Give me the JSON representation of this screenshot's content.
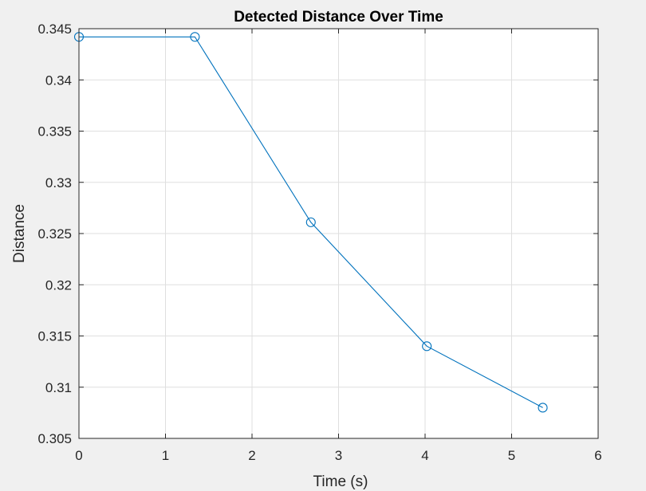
{
  "chart_data": {
    "type": "line",
    "title": "Detected Distance Over Time",
    "xlabel": "Time (s)",
    "ylabel": "Distance",
    "xlim": [
      0,
      6
    ],
    "ylim": [
      0.305,
      0.345
    ],
    "x_ticks": [
      0,
      1,
      2,
      3,
      4,
      5,
      6
    ],
    "x_tick_labels": [
      "0",
      "1",
      "2",
      "3",
      "4",
      "5",
      "6"
    ],
    "y_ticks": [
      0.305,
      0.31,
      0.315,
      0.32,
      0.325,
      0.33,
      0.335,
      0.34,
      0.345
    ],
    "y_tick_labels": [
      "0.305",
      "0.31",
      "0.315",
      "0.32",
      "0.325",
      "0.33",
      "0.335",
      "0.34",
      "0.345"
    ],
    "grid": true,
    "marker": "circle",
    "series": [
      {
        "x": [
          0,
          1.34,
          2.68,
          4.02,
          5.36
        ],
        "y": [
          0.3442,
          0.3442,
          0.3261,
          0.314,
          0.308
        ],
        "color": "#0072BD"
      }
    ]
  }
}
